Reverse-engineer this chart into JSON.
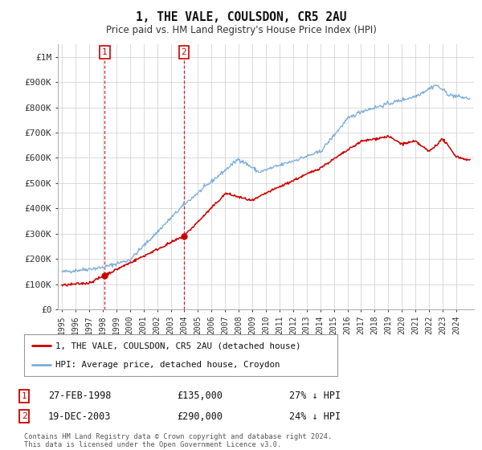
{
  "title": "1, THE VALE, COULSDON, CR5 2AU",
  "subtitle": "Price paid vs. HM Land Registry's House Price Index (HPI)",
  "ylim": [
    0,
    1050000
  ],
  "xlim": [
    1994.7,
    2025.3
  ],
  "yticks": [
    0,
    100000,
    200000,
    300000,
    400000,
    500000,
    600000,
    700000,
    800000,
    900000,
    1000000
  ],
  "ytick_labels": [
    "£0",
    "£100K",
    "£200K",
    "£300K",
    "£400K",
    "£500K",
    "£600K",
    "£700K",
    "£800K",
    "£900K",
    "£1M"
  ],
  "sale1_date": 1998.15,
  "sale1_price": 135000,
  "sale1_label": "1",
  "sale2_date": 2003.97,
  "sale2_price": 290000,
  "sale2_label": "2",
  "legend_entry1": "1, THE VALE, COULSDON, CR5 2AU (detached house)",
  "legend_entry2": "HPI: Average price, detached house, Croydon",
  "table_row1": [
    "1",
    "27-FEB-1998",
    "£135,000",
    "27% ↓ HPI"
  ],
  "table_row2": [
    "2",
    "19-DEC-2003",
    "£290,000",
    "24% ↓ HPI"
  ],
  "footnote1": "Contains HM Land Registry data © Crown copyright and database right 2024.",
  "footnote2": "This data is licensed under the Open Government Licence v3.0.",
  "hpi_color": "#7aaddb",
  "price_color": "#cc0000",
  "marker_box_color": "#cc0000",
  "bg_color": "#ffffff",
  "grid_color": "#cccccc"
}
